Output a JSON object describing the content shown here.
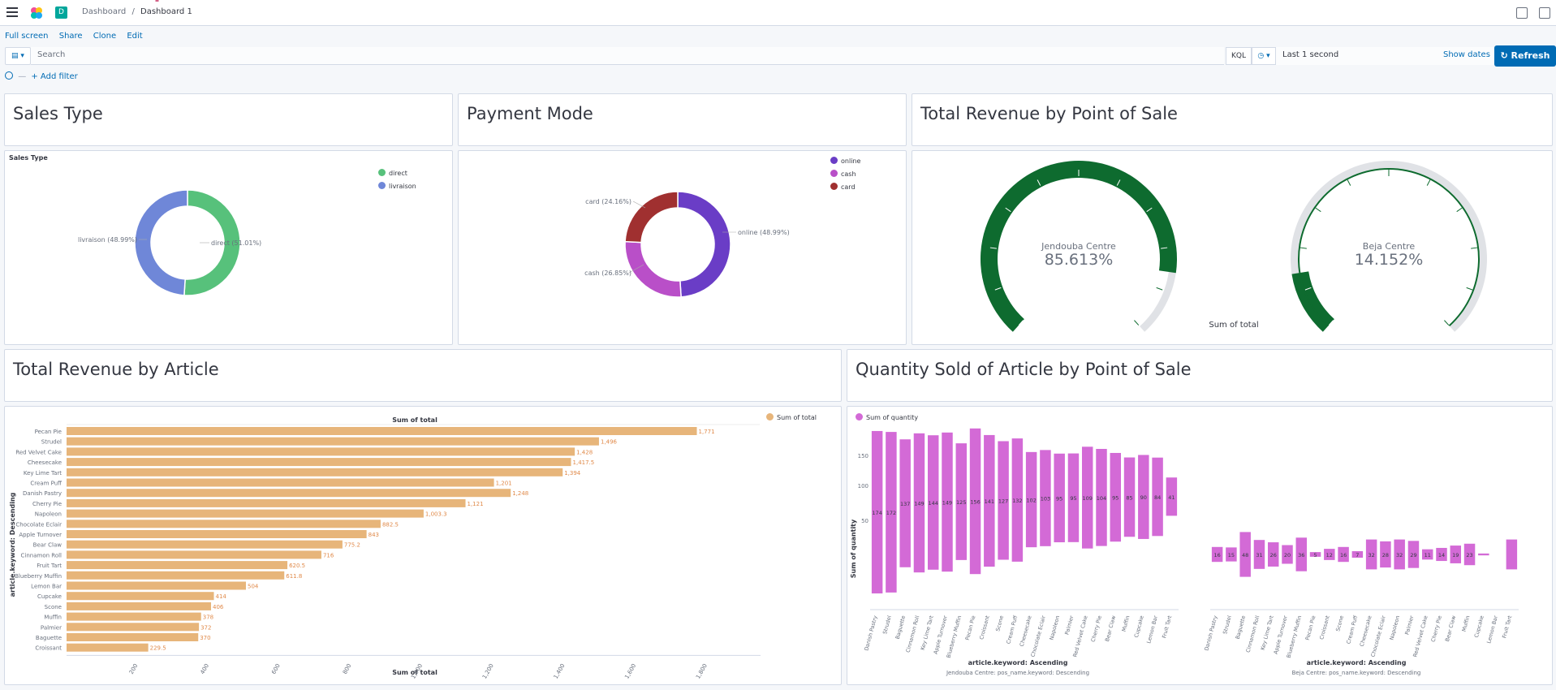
{
  "header": {
    "breadcrumbs": [
      "Dashboard",
      "Dashboard 1"
    ],
    "space_badge": "D",
    "actions": [
      "Full screen",
      "Share",
      "Clone",
      "Edit"
    ]
  },
  "query": {
    "search_placeholder": "Search",
    "language": "KQL",
    "time_range": "Last 1 second",
    "show_dates": "Show dates",
    "refresh": "Refresh",
    "add_filter": "+ Add filter"
  },
  "panels": {
    "sales_type_title": "Sales Type",
    "payment_mode_title": "Payment Mode",
    "revenue_pos_title": "Total Revenue by Point of Sale",
    "revenue_article_title": "Total Revenue by Article",
    "qty_article_pos_title": "Quantity Sold of Article by Point of Sale"
  },
  "colors": {
    "green": "#57c17b",
    "blue": "#6f87d8",
    "purple": "#6a3dc6",
    "magenta": "#b94fc8",
    "red": "#a03030",
    "gauge": "#0e6b2f",
    "bar_orange": "#e7b57a",
    "bar_pink": "#d36ad6"
  },
  "chart_data": [
    {
      "type": "pie",
      "title": "Sales Type",
      "categories": [
        "direct",
        "livraison"
      ],
      "values": [
        51.01,
        48.99
      ],
      "labels": [
        "direct (51.01%)",
        "livraison (48.99%)"
      ],
      "legend": [
        "direct",
        "livraison"
      ]
    },
    {
      "type": "pie",
      "title": "Payment Mode",
      "categories": [
        "online",
        "cash",
        "card"
      ],
      "values": [
        48.99,
        26.85,
        24.16
      ],
      "labels": [
        "online (48.99%)",
        "cash (26.85%)",
        "card (24.16%)"
      ],
      "legend": [
        "online",
        "cash",
        "card"
      ]
    },
    {
      "type": "gauge",
      "title": "Sum of total",
      "series": [
        {
          "name": "Jendouba Centre",
          "value": 85.613,
          "label": "85.613%"
        },
        {
          "name": "Beja Centre",
          "value": 14.152,
          "label": "14.152%"
        }
      ]
    },
    {
      "type": "bar",
      "orientation": "horizontal",
      "title": "Sum of total",
      "xlabel": "Sum of total",
      "ylabel": "article.keyword: Descending",
      "legend": "Sum of total",
      "categories": [
        "Pecan Pie",
        "Strudel",
        "Red Velvet Cake",
        "Cheesecake",
        "Key Lime Tart",
        "Cream Puff",
        "Danish Pastry",
        "Cherry Pie",
        "Napoleon",
        "Chocolate Eclair",
        "Apple Turnover",
        "Bear Claw",
        "Cinnamon Roll",
        "Fruit Tart",
        "Blueberry Muffin",
        "Lemon Bar",
        "Cupcake",
        "Scone",
        "Muffin",
        "Palmier",
        "Baguette",
        "Croissant"
      ],
      "values": [
        1771,
        1496,
        1428,
        1417.5,
        1394,
        1201,
        1248,
        1121,
        1003.3,
        882.5,
        843,
        775.2,
        716,
        620.5,
        611.8,
        504,
        414,
        406,
        378,
        372,
        370,
        229.5
      ],
      "value_labels": [
        "1,771",
        "1,496",
        "1,428",
        "1,417.5",
        "1,394",
        "1,201",
        "1,248",
        "1,121",
        "1,003.3",
        "882.5",
        "843",
        "775.2",
        "716",
        "620.5",
        "611.8",
        "504",
        "414",
        "406",
        "378",
        "372",
        "370",
        "229.5"
      ],
      "xticks": [
        "200",
        "400",
        "600",
        "800",
        "1,000",
        "1,200",
        "1,400",
        "1,600",
        "1,800"
      ],
      "xlim": [
        0,
        1950
      ]
    },
    {
      "type": "bar",
      "orientation": "vertical",
      "legend": "Sum of quantity",
      "ylabel": "Sum of quantity",
      "yticks": [
        "150",
        "100",
        "50"
      ],
      "ylim": [
        0,
        185
      ],
      "xlabel": "article.keyword: Ascending",
      "subplots": [
        {
          "name": "Jendouba Centre: pos_name.keyword: Descending",
          "categories": [
            "Danish Pastry",
            "Strudel",
            "Baguette",
            "Cinnamon Roll",
            "Key Lime Tart",
            "Apple Turnover",
            "Blueberry Muffin",
            "Pecan Pie",
            "Croissant",
            "Scone",
            "Cream Puff",
            "Cheesecake",
            "Chocolate Eclair",
            "Napoleon",
            "Palmier",
            "Red Velvet Cake",
            "Cherry Pie",
            "Bear Claw",
            "Muffin",
            "Cupcake",
            "Lemon Bar",
            "Fruit Tart"
          ],
          "values": [
            174,
            172,
            137,
            149,
            144,
            149,
            125,
            156,
            141,
            127,
            132,
            102,
            103,
            95,
            95,
            109,
            104,
            95,
            85,
            90,
            84,
            41
          ]
        },
        {
          "name": "Beja Centre: pos_name.keyword: Descending",
          "categories": [
            "Danish Pastry",
            "Strudel",
            "Baguette",
            "Cinnamon Roll",
            "Key Lime Tart",
            "Apple Turnover",
            "Blueberry Muffin",
            "Pecan Pie",
            "Croissant",
            "Scone",
            "Cream Puff",
            "Cheesecake",
            "Chocolate Eclair",
            "Napoleon",
            "Palmier",
            "Red Velvet Cake",
            "Cherry Pie",
            "Bear Claw",
            "Muffin",
            "Cupcake",
            "Lemon Bar",
            "Fruit Tart"
          ],
          "values": [
            16,
            15,
            48,
            31,
            26,
            20,
            36,
            5,
            12,
            16,
            7,
            32,
            28,
            32,
            29,
            11,
            14,
            19,
            23,
            2,
            0,
            32
          ],
          "value_labels": [
            "16",
            "15",
            "48",
            "31",
            "26",
            "20",
            "36",
            "5",
            "12",
            "16",
            "7",
            "32",
            "28",
            "32",
            "29",
            "11",
            "14",
            "19",
            "23",
            "",
            "",
            ""
          ]
        }
      ]
    }
  ]
}
